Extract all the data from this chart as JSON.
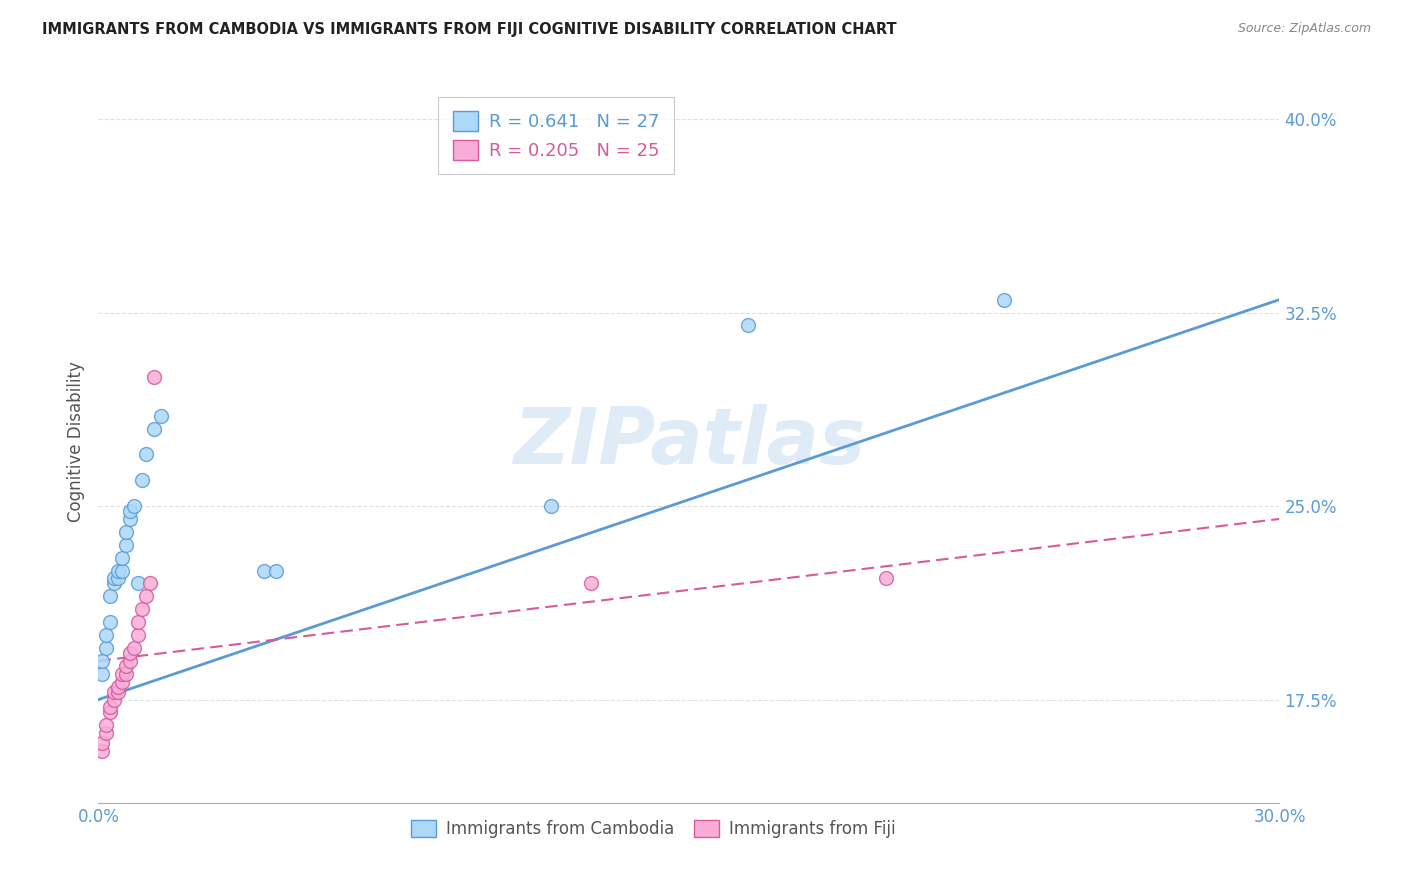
{
  "title": "IMMIGRANTS FROM CAMBODIA VS IMMIGRANTS FROM FIJI COGNITIVE DISABILITY CORRELATION CHART",
  "source": "Source: ZipAtlas.com",
  "ylabel": "Cognitive Disability",
  "yticks": [
    17.5,
    25.0,
    32.5,
    40.0
  ],
  "xlim": [
    0.0,
    0.3
  ],
  "ylim": [
    0.135,
    0.415
  ],
  "cambodia_color": "#add8f7",
  "fiji_color": "#f7add8",
  "cambodia_edge_color": "#5b9bd5",
  "fiji_edge_color": "#d55b9b",
  "cambodia_line_color": "#5b9bd5",
  "fiji_line_color": "#d55b9b",
  "legend_R_cambodia": "0.641",
  "legend_N_cambodia": "27",
  "legend_R_fiji": "0.205",
  "legend_N_fiji": "25",
  "watermark": "ZIPatlas",
  "cambodia_x": [
    0.001,
    0.001,
    0.002,
    0.002,
    0.003,
    0.003,
    0.004,
    0.004,
    0.005,
    0.005,
    0.006,
    0.006,
    0.007,
    0.007,
    0.008,
    0.008,
    0.009,
    0.01,
    0.011,
    0.012,
    0.014,
    0.016,
    0.042,
    0.045,
    0.115,
    0.165,
    0.23
  ],
  "cambodia_y": [
    0.185,
    0.19,
    0.195,
    0.2,
    0.205,
    0.215,
    0.22,
    0.222,
    0.222,
    0.225,
    0.225,
    0.23,
    0.235,
    0.24,
    0.245,
    0.248,
    0.25,
    0.22,
    0.26,
    0.27,
    0.28,
    0.285,
    0.225,
    0.225,
    0.25,
    0.32,
    0.33
  ],
  "fiji_x": [
    0.001,
    0.001,
    0.002,
    0.002,
    0.003,
    0.003,
    0.004,
    0.004,
    0.005,
    0.005,
    0.006,
    0.006,
    0.007,
    0.007,
    0.008,
    0.008,
    0.009,
    0.01,
    0.01,
    0.011,
    0.012,
    0.013,
    0.014,
    0.125,
    0.2
  ],
  "fiji_y": [
    0.155,
    0.158,
    0.162,
    0.165,
    0.17,
    0.172,
    0.175,
    0.178,
    0.178,
    0.18,
    0.182,
    0.185,
    0.185,
    0.188,
    0.19,
    0.193,
    0.195,
    0.2,
    0.205,
    0.21,
    0.215,
    0.22,
    0.3,
    0.22,
    0.222
  ],
  "camb_line_x": [
    0.0,
    0.3
  ],
  "camb_line_y": [
    0.175,
    0.33
  ],
  "fiji_line_x": [
    0.0,
    0.3
  ],
  "fiji_line_y": [
    0.19,
    0.245
  ],
  "background_color": "#ffffff",
  "grid_color": "#e0e0e0",
  "title_color": "#222222",
  "axis_label_color": "#5b9bd5",
  "ylabel_color": "#555555"
}
